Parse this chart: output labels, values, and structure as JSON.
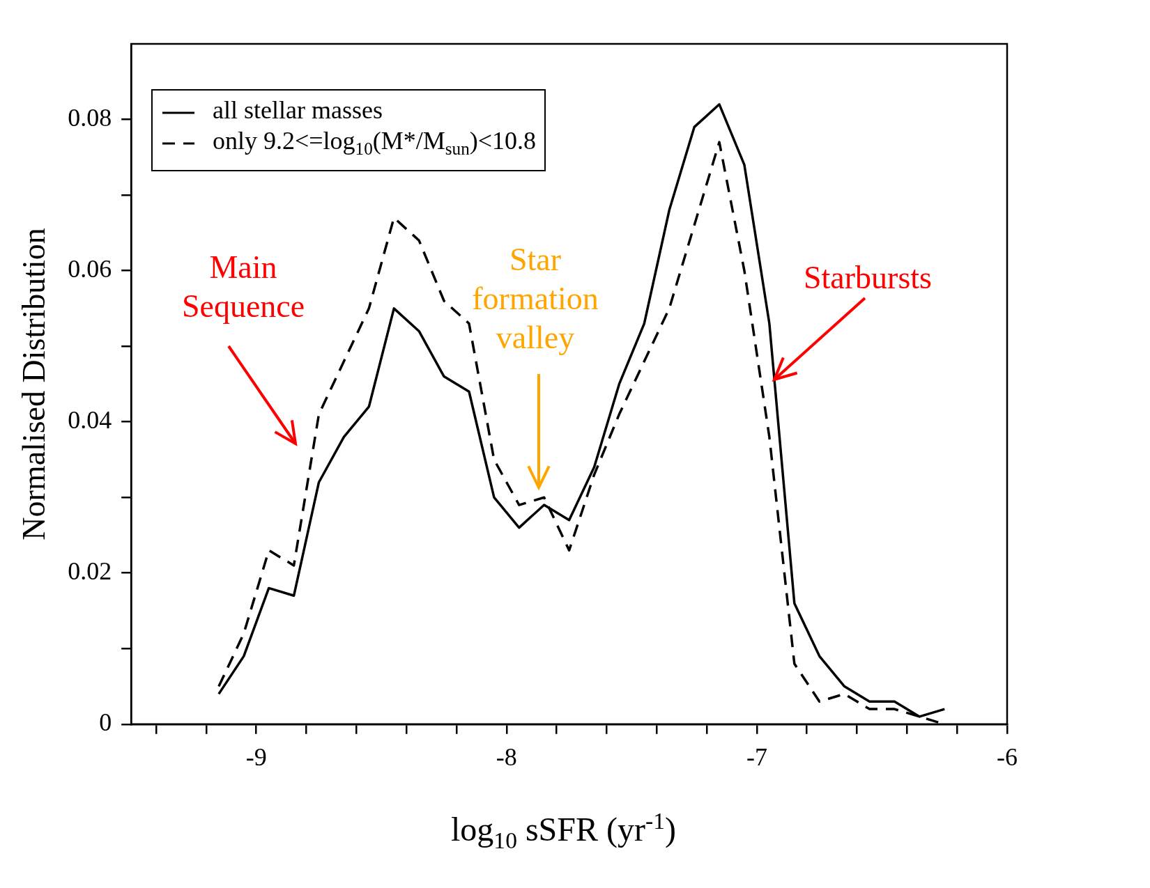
{
  "chart_data": {
    "type": "line",
    "xlabel": "log$_{10}$ sSFR (yr$^{-1}$)",
    "ylabel": "Normalised Distribution",
    "x": [
      -9.15,
      -9.05,
      -8.95,
      -8.85,
      -8.75,
      -8.65,
      -8.55,
      -8.45,
      -8.35,
      -8.25,
      -8.15,
      -8.05,
      -7.95,
      -7.85,
      -7.75,
      -7.65,
      -7.55,
      -7.45,
      -7.35,
      -7.25,
      -7.15,
      -7.05,
      -6.95,
      -6.85,
      -6.75,
      -6.65,
      -6.55,
      -6.45,
      -6.35,
      -6.25
    ],
    "series": [
      {
        "name": "all stellar masses",
        "color": "#000000",
        "line_style": "solid",
        "values": [
          0.004,
          0.009,
          0.018,
          0.017,
          0.032,
          0.038,
          0.042,
          0.055,
          0.052,
          0.046,
          0.044,
          0.03,
          0.026,
          0.029,
          0.027,
          0.034,
          0.045,
          0.053,
          0.068,
          0.079,
          0.082,
          0.074,
          0.053,
          0.016,
          0.009,
          0.005,
          0.003,
          0.003,
          0.001,
          0.002
        ]
      },
      {
        "name": "only 9.2<=log$_{10}$(M*/M$_{sun}$)<10.8",
        "color": "#000000",
        "line_style": "dashed",
        "values": [
          0.005,
          0.012,
          0.023,
          0.021,
          0.041,
          0.048,
          0.055,
          0.067,
          0.064,
          0.056,
          0.053,
          0.035,
          0.029,
          0.03,
          0.023,
          0.033,
          0.041,
          0.048,
          0.055,
          0.066,
          0.077,
          0.06,
          0.038,
          0.008,
          0.003,
          0.004,
          0.002,
          0.002,
          0.001,
          0.0
        ]
      }
    ],
    "xlim": [
      -9.5,
      -6
    ],
    "xticks": [
      {
        "value": -9.4,
        "label": null
      },
      {
        "value": -9.2,
        "label": null
      },
      -9,
      {
        "value": -8.8,
        "label": null
      },
      {
        "value": -8.6,
        "label": null
      },
      {
        "value": -8.4,
        "label": null
      },
      {
        "value": -8.2,
        "label": null
      },
      -8,
      {
        "value": -7.8,
        "label": null
      },
      {
        "value": -7.6,
        "label": null
      },
      {
        "value": -7.4,
        "label": null
      },
      {
        "value": -7.2,
        "label": null
      },
      -7,
      {
        "value": -6.8,
        "label": null
      },
      {
        "value": -6.6,
        "label": null
      },
      {
        "value": -6.4,
        "label": null
      },
      {
        "value": -6.2,
        "label": null
      },
      -6
    ],
    "ylim": [
      0,
      0.09
    ],
    "yticks": [
      0,
      {
        "value": 0.01,
        "label": null
      },
      0.02,
      {
        "value": 0.03,
        "label": null
      },
      0.04,
      {
        "value": 0.05,
        "label": null
      },
      0.06,
      {
        "value": 0.07,
        "label": null
      },
      0.08
    ],
    "grid": false,
    "legend": "top left",
    "marker": "none",
    "annotations": [
      "Main Sequence",
      "Star formation valley",
      {
        "text": "Starbursts",
        "x": -6.93,
        "y": 0.0456
      }
    ]
  }
}
